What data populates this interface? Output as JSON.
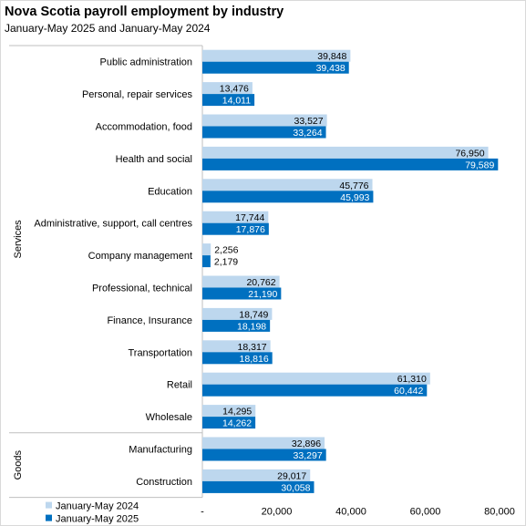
{
  "header": {
    "title": "Nova Scotia payroll employment by industry",
    "subtitle": "January-May 2025 and January-May 2024"
  },
  "colors": {
    "series_2024": "#bdd7ee",
    "series_2025": "#0070c0",
    "axis": "#bfbfbf"
  },
  "chart_data": {
    "type": "bar",
    "orientation": "horizontal",
    "title": "Nova Scotia payroll employment by industry",
    "subtitle": "January-May 2025 and January-May 2024",
    "categories": [
      "Public administration",
      "Personal, repair services",
      "Accommodation, food",
      "Health and social",
      "Education",
      "Administrative, support, call centres",
      "Company management",
      "Professional, technical",
      "Finance, Insurance",
      "Transportation",
      "Retail",
      "Wholesale",
      "Manufacturing",
      "Construction"
    ],
    "groups": [
      {
        "label": "Services",
        "categories": [
          "Public administration",
          "Personal, repair services",
          "Accommodation, food",
          "Health and social",
          "Education",
          "Administrative, support, call centres",
          "Company management",
          "Professional, technical",
          "Finance, Insurance",
          "Transportation",
          "Retail",
          "Wholesale"
        ]
      },
      {
        "label": "Goods",
        "categories": [
          "Manufacturing",
          "Construction"
        ]
      }
    ],
    "series": [
      {
        "name": "January-May 2024",
        "values": [
          39848,
          13476,
          33527,
          76950,
          45776,
          17744,
          2256,
          20762,
          18749,
          18317,
          61310,
          14295,
          32896,
          29017
        ],
        "labels": [
          "39,848",
          "13,476",
          "33,527",
          "76,950",
          "45,776",
          "17,744",
          "2,256",
          "20,762",
          "18,749",
          "18,317",
          "61,310",
          "14,295",
          "32,896",
          "29,017"
        ]
      },
      {
        "name": "January-May 2025",
        "values": [
          39438,
          14011,
          33264,
          79589,
          45993,
          17876,
          2179,
          21190,
          18198,
          18816,
          60442,
          14262,
          33297,
          30058
        ],
        "labels": [
          "39,438",
          "14,011",
          "33,264",
          "79,589",
          "45,993",
          "17,876",
          "2,179",
          "21,190",
          "18,198",
          "18,816",
          "60,442",
          "14,262",
          "33,297",
          "30,058"
        ]
      }
    ],
    "xlim": [
      0,
      80000
    ],
    "x_ticks": [
      0,
      20000,
      40000,
      60000,
      80000
    ],
    "x_tick_labels": [
      "-",
      "20,000",
      "40,000",
      "60,000",
      "80,000"
    ],
    "grid": false,
    "legend_position": "bottom-left"
  }
}
